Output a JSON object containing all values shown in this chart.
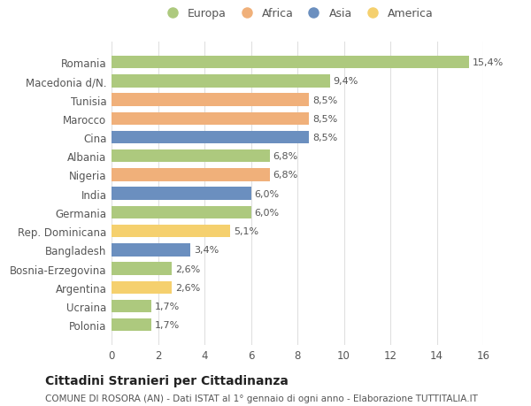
{
  "countries": [
    "Romania",
    "Macedonia d/N.",
    "Tunisia",
    "Marocco",
    "Cina",
    "Albania",
    "Nigeria",
    "India",
    "Germania",
    "Rep. Dominicana",
    "Bangladesh",
    "Bosnia-Erzegovina",
    "Argentina",
    "Ucraina",
    "Polonia"
  ],
  "values": [
    15.4,
    9.4,
    8.5,
    8.5,
    8.5,
    6.8,
    6.8,
    6.0,
    6.0,
    5.1,
    3.4,
    2.6,
    2.6,
    1.7,
    1.7
  ],
  "labels": [
    "15,4%",
    "9,4%",
    "8,5%",
    "8,5%",
    "8,5%",
    "6,8%",
    "6,8%",
    "6,0%",
    "6,0%",
    "5,1%",
    "3,4%",
    "2,6%",
    "2,6%",
    "1,7%",
    "1,7%"
  ],
  "continents": [
    "Europa",
    "Europa",
    "Africa",
    "Africa",
    "Asia",
    "Europa",
    "Africa",
    "Asia",
    "Europa",
    "America",
    "Asia",
    "Europa",
    "America",
    "Europa",
    "Europa"
  ],
  "colors": {
    "Europa": "#adc97e",
    "Africa": "#f0b07a",
    "Asia": "#6b8fbf",
    "America": "#f5d06e"
  },
  "legend_order": [
    "Europa",
    "Africa",
    "Asia",
    "America"
  ],
  "xlim": [
    0,
    16
  ],
  "xticks": [
    0,
    2,
    4,
    6,
    8,
    10,
    12,
    14,
    16
  ],
  "title": "Cittadini Stranieri per Cittadinanza",
  "subtitle": "COMUNE DI ROSORA (AN) - Dati ISTAT al 1° gennaio di ogni anno - Elaborazione TUTTITALIA.IT",
  "bg_color": "#ffffff",
  "grid_color": "#e0e0e0",
  "bar_height": 0.68,
  "label_fontsize": 8,
  "axis_label_fontsize": 8.5,
  "title_fontsize": 10,
  "subtitle_fontsize": 7.5
}
